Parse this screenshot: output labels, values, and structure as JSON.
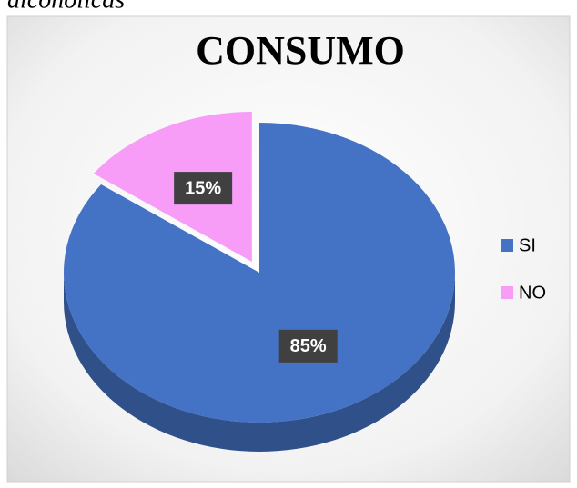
{
  "caption": "alcohólicas",
  "chart_data": {
    "type": "pie",
    "title": "CONSUMO",
    "categories": [
      "SI",
      "NO"
    ],
    "values": [
      85,
      15
    ],
    "value_labels": [
      "85%",
      "15%"
    ],
    "colors": [
      "#4472c4",
      "#f79df7"
    ],
    "legend": "right"
  }
}
